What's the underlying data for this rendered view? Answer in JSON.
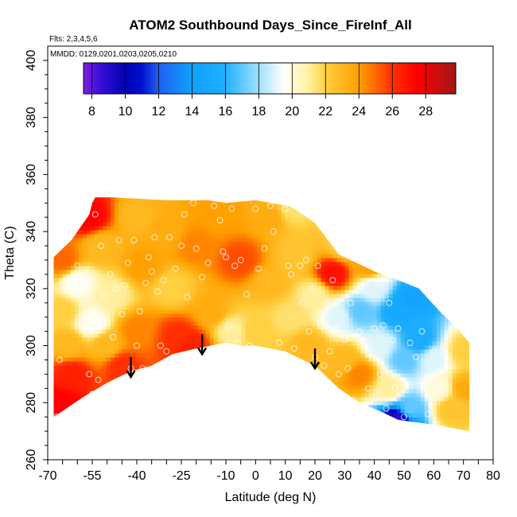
{
  "chart_data": {
    "type": "heatmap",
    "title": "ATOM2 Southbound Days_Since_FireInf_All",
    "flights_label": "Flts: 2,3,4,5,6",
    "dates_label": "MMDD: 0129,0201,0203,0205,0210",
    "xlabel": "Latitude (deg N)",
    "ylabel": "Theta (C)",
    "xlim": [
      -70,
      80
    ],
    "ylim": [
      260,
      405
    ],
    "x_ticks": [
      -70,
      -55,
      -40,
      -25,
      -10,
      0,
      10,
      20,
      30,
      40,
      50,
      60,
      70,
      80
    ],
    "y_ticks": [
      260,
      280,
      300,
      320,
      340,
      360,
      380,
      400
    ],
    "colorbar": {
      "range": [
        7.5,
        29.8
      ],
      "ticks": [
        8,
        10,
        12,
        14,
        16,
        18,
        20,
        22,
        24,
        26,
        28
      ],
      "stops": [
        {
          "v": 7.5,
          "c": "#7B1FE0"
        },
        {
          "v": 8.5,
          "c": "#3A10D8"
        },
        {
          "v": 10,
          "c": "#0000B0"
        },
        {
          "v": 11,
          "c": "#0010D0"
        },
        {
          "v": 12,
          "c": "#2060F0"
        },
        {
          "v": 14,
          "c": "#10A0FF"
        },
        {
          "v": 16,
          "c": "#20B0FF"
        },
        {
          "v": 18,
          "c": "#A0E0FF"
        },
        {
          "v": 19.5,
          "c": "#FFFFF8"
        },
        {
          "v": 21,
          "c": "#FFF0A0"
        },
        {
          "v": 22,
          "c": "#FFD040"
        },
        {
          "v": 24,
          "c": "#FFA000"
        },
        {
          "v": 26,
          "c": "#FF3000"
        },
        {
          "v": 27.5,
          "c": "#FF0000"
        },
        {
          "v": 29.8,
          "c": "#A01818"
        }
      ]
    },
    "field_region": {
      "upper": [
        [
          -68,
          331
        ],
        [
          -62,
          337
        ],
        [
          -56,
          346
        ],
        [
          -55,
          350
        ],
        [
          -54,
          352
        ],
        [
          -48,
          352
        ],
        [
          -30,
          351
        ],
        [
          -16,
          351
        ],
        [
          -10,
          350
        ],
        [
          0,
          351
        ],
        [
          11,
          349
        ],
        [
          13,
          348
        ],
        [
          20,
          343
        ],
        [
          28,
          332
        ],
        [
          40,
          326
        ],
        [
          48,
          323
        ],
        [
          55,
          320
        ],
        [
          62,
          312
        ],
        [
          68,
          306
        ],
        [
          72,
          301
        ],
        [
          72,
          270
        ]
      ],
      "lower": [
        [
          -68,
          275
        ],
        [
          -58,
          282
        ],
        [
          -50,
          287
        ],
        [
          -42,
          291
        ],
        [
          -35,
          293
        ],
        [
          -28,
          297
        ],
        [
          -20,
          299
        ],
        [
          -10,
          301
        ],
        [
          -5,
          300
        ],
        [
          0,
          300
        ],
        [
          10,
          298
        ],
        [
          20,
          293
        ],
        [
          28,
          285
        ],
        [
          35,
          280
        ],
        [
          42,
          277
        ],
        [
          48,
          274
        ],
        [
          55,
          273
        ],
        [
          62,
          272
        ],
        [
          72,
          270
        ]
      ]
    },
    "color_anchors": [
      {
        "x": -66,
        "y": 280,
        "v": 27.5
      },
      {
        "x": -62,
        "y": 290,
        "v": 26.5
      },
      {
        "x": -63,
        "y": 300,
        "v": 23
      },
      {
        "x": -65,
        "y": 312,
        "v": 22
      },
      {
        "x": -60,
        "y": 322,
        "v": 19.5
      },
      {
        "x": -65,
        "y": 330,
        "v": 25
      },
      {
        "x": -56,
        "y": 345,
        "v": 27.5
      },
      {
        "x": -52,
        "y": 335,
        "v": 23
      },
      {
        "x": -48,
        "y": 318,
        "v": 21
      },
      {
        "x": -55,
        "y": 308,
        "v": 19.5
      },
      {
        "x": -50,
        "y": 300,
        "v": 23
      },
      {
        "x": -45,
        "y": 293,
        "v": 26
      },
      {
        "x": -40,
        "y": 305,
        "v": 24.5
      },
      {
        "x": -38,
        "y": 328,
        "v": 24
      },
      {
        "x": -40,
        "y": 345,
        "v": 23
      },
      {
        "x": -30,
        "y": 340,
        "v": 23.5
      },
      {
        "x": -28,
        "y": 320,
        "v": 22
      },
      {
        "x": -26,
        "y": 303,
        "v": 26
      },
      {
        "x": -22,
        "y": 300,
        "v": 26.5
      },
      {
        "x": -20,
        "y": 335,
        "v": 24.5
      },
      {
        "x": -15,
        "y": 312,
        "v": 23.5
      },
      {
        "x": -12,
        "y": 345,
        "v": 24
      },
      {
        "x": -5,
        "y": 330,
        "v": 25.5
      },
      {
        "x": -8,
        "y": 305,
        "v": 21
      },
      {
        "x": 0,
        "y": 305,
        "v": 22
      },
      {
        "x": 5,
        "y": 322,
        "v": 23
      },
      {
        "x": 5,
        "y": 345,
        "v": 23.5
      },
      {
        "x": 12,
        "y": 348,
        "v": 21.5
      },
      {
        "x": 14,
        "y": 332,
        "v": 22.5
      },
      {
        "x": 12,
        "y": 310,
        "v": 21.5
      },
      {
        "x": 18,
        "y": 300,
        "v": 23
      },
      {
        "x": 20,
        "y": 318,
        "v": 21
      },
      {
        "x": 26,
        "y": 325,
        "v": 27
      },
      {
        "x": 28,
        "y": 310,
        "v": 19
      },
      {
        "x": 30,
        "y": 295,
        "v": 23
      },
      {
        "x": 35,
        "y": 290,
        "v": 24.5
      },
      {
        "x": 35,
        "y": 312,
        "v": 17
      },
      {
        "x": 40,
        "y": 320,
        "v": 19
      },
      {
        "x": 42,
        "y": 300,
        "v": 19
      },
      {
        "x": 45,
        "y": 285,
        "v": 21
      },
      {
        "x": 48,
        "y": 312,
        "v": 15
      },
      {
        "x": 52,
        "y": 316,
        "v": 14.5
      },
      {
        "x": 50,
        "y": 295,
        "v": 17
      },
      {
        "x": 55,
        "y": 302,
        "v": 15.5
      },
      {
        "x": 52,
        "y": 278,
        "v": 17
      },
      {
        "x": 48,
        "y": 274,
        "v": 9
      },
      {
        "x": 60,
        "y": 295,
        "v": 19
      },
      {
        "x": 62,
        "y": 285,
        "v": 20
      },
      {
        "x": 66,
        "y": 278,
        "v": 22.5
      },
      {
        "x": 70,
        "y": 285,
        "v": 23.5
      },
      {
        "x": 70,
        "y": 298,
        "v": 22
      },
      {
        "x": 38,
        "y": 328,
        "v": 24
      },
      {
        "x": 30,
        "y": 335,
        "v": 22
      }
    ],
    "sample_points": [
      [
        -67,
        275
      ],
      [
        -66,
        295
      ],
      [
        -64,
        323
      ],
      [
        -62,
        322
      ],
      [
        -61,
        318
      ],
      [
        -60,
        328
      ],
      [
        -59,
        321
      ],
      [
        -58,
        315
      ],
      [
        -57,
        305
      ],
      [
        -56,
        290
      ],
      [
        -55,
        283
      ],
      [
        -54,
        346
      ],
      [
        -53,
        288
      ],
      [
        -52,
        335
      ],
      [
        -51,
        318
      ],
      [
        -50,
        308
      ],
      [
        -49,
        325
      ],
      [
        -48,
        303
      ],
      [
        -47,
        320
      ],
      [
        -46,
        337
      ],
      [
        -45,
        311
      ],
      [
        -44,
        321
      ],
      [
        -43,
        329
      ],
      [
        -42,
        292
      ],
      [
        -41,
        337
      ],
      [
        -40,
        300
      ],
      [
        -39,
        312
      ],
      [
        -38,
        292
      ],
      [
        -37,
        322
      ],
      [
        -36,
        331
      ],
      [
        -35,
        326
      ],
      [
        -34,
        338
      ],
      [
        -33,
        319
      ],
      [
        -32,
        300
      ],
      [
        -31,
        323
      ],
      [
        -30,
        298
      ],
      [
        -29,
        338
      ],
      [
        -27,
        327
      ],
      [
        -25,
        335
      ],
      [
        -24,
        346
      ],
      [
        -23,
        317
      ],
      [
        -21,
        350
      ],
      [
        -20,
        334
      ],
      [
        -18,
        324
      ],
      [
        -16,
        329
      ],
      [
        -14,
        349
      ],
      [
        -12,
        344
      ],
      [
        -11,
        333
      ],
      [
        -10,
        331
      ],
      [
        -9,
        307
      ],
      [
        -8,
        348
      ],
      [
        -7,
        328
      ],
      [
        -6,
        301
      ],
      [
        -5,
        330
      ],
      [
        -3,
        318
      ],
      [
        -2,
        300
      ],
      [
        0,
        348
      ],
      [
        1,
        327
      ],
      [
        3,
        334
      ],
      [
        5,
        349
      ],
      [
        6,
        340
      ],
      [
        8,
        301
      ],
      [
        10,
        348
      ],
      [
        11,
        328
      ],
      [
        12,
        325
      ],
      [
        13,
        299
      ],
      [
        15,
        328
      ],
      [
        16,
        315
      ],
      [
        17,
        330
      ],
      [
        18,
        305
      ],
      [
        19,
        320
      ],
      [
        20,
        296
      ],
      [
        21,
        328
      ],
      [
        22,
        307
      ],
      [
        23,
        293
      ],
      [
        24,
        315
      ],
      [
        25,
        298
      ],
      [
        26,
        323
      ],
      [
        27,
        306
      ],
      [
        28,
        290
      ],
      [
        30,
        302
      ],
      [
        31,
        292
      ],
      [
        32,
        315
      ],
      [
        33,
        281
      ],
      [
        35,
        305
      ],
      [
        36,
        300
      ],
      [
        38,
        285
      ],
      [
        40,
        306
      ],
      [
        41,
        322
      ],
      [
        42,
        290
      ],
      [
        43,
        307
      ],
      [
        44,
        278
      ],
      [
        45,
        315
      ],
      [
        46,
        302
      ],
      [
        47,
        285
      ],
      [
        48,
        306
      ],
      [
        50,
        275
      ],
      [
        52,
        301
      ],
      [
        54,
        296
      ],
      [
        56,
        305
      ],
      [
        58,
        276
      ],
      [
        60,
        298
      ],
      [
        62,
        285
      ]
    ],
    "arrows": [
      {
        "x": -42,
        "y_top": 296,
        "y_bottom": 289
      },
      {
        "x": -18,
        "y_top": 304,
        "y_bottom": 297
      },
      {
        "x": 20,
        "y_top": 299,
        "y_bottom": 292
      }
    ]
  }
}
